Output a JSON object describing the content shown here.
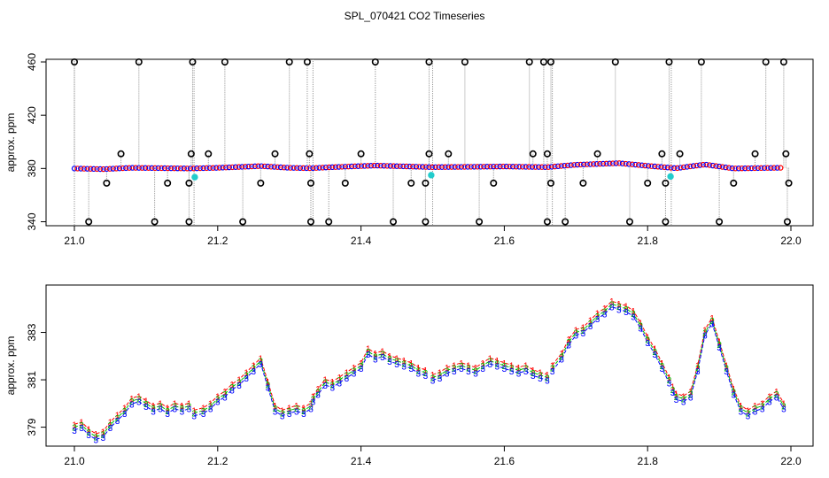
{
  "title": "SPL_070421  CO2 Timeseries",
  "colors": {
    "series1": "#ff0000",
    "series2": "#00bb00",
    "series3": "#0000ff",
    "outlier_marker": "#000000",
    "flagged": "#22cccc",
    "connector": "#999999"
  },
  "chart_data": [
    {
      "type": "scatter",
      "ylabel": "approx. ppm",
      "xlim": [
        21.0,
        22.0
      ],
      "ylim": [
        337,
        462
      ],
      "x_ticks": [
        "21.0",
        "21.2",
        "21.4",
        "21.6",
        "21.8",
        "22.0"
      ],
      "x_tick_values": [
        21.0,
        21.2,
        21.4,
        21.6,
        21.8,
        22.0
      ],
      "y_ticks": [
        "340",
        "380",
        "420",
        "460"
      ],
      "y_tick_values": [
        340,
        380,
        420,
        460
      ],
      "baseline_trend": [
        [
          21.0,
          380.0
        ],
        [
          21.04,
          379.5
        ],
        [
          21.08,
          380.5
        ],
        [
          21.16,
          380.0
        ],
        [
          21.2,
          380.5
        ],
        [
          21.26,
          381.8
        ],
        [
          21.3,
          380.5
        ],
        [
          21.33,
          380.2
        ],
        [
          21.36,
          381.0
        ],
        [
          21.42,
          382.2
        ],
        [
          21.5,
          381.0
        ],
        [
          21.6,
          381.5
        ],
        [
          21.66,
          381.0
        ],
        [
          21.7,
          382.8
        ],
        [
          21.76,
          384.0
        ],
        [
          21.8,
          382.0
        ],
        [
          21.84,
          380.2
        ],
        [
          21.88,
          383.0
        ],
        [
          21.92,
          380.0
        ],
        [
          21.98,
          380.5
        ]
      ],
      "break_points": [
        21.167,
        21.333,
        21.5,
        21.667,
        21.833
      ],
      "outliers_high": [
        21.0,
        21.09,
        21.165,
        21.21,
        21.3,
        21.325,
        21.42,
        21.495,
        21.545,
        21.635,
        21.655,
        21.665,
        21.755,
        21.83,
        21.875,
        21.965,
        21.99
      ],
      "outliers_low": [
        21.02,
        21.112,
        21.16,
        21.235,
        21.33,
        21.355,
        21.445,
        21.49,
        21.565,
        21.66,
        21.685,
        21.775,
        21.825,
        21.9,
        21.995
      ],
      "outliers_mid_high": [
        21.065,
        21.163,
        21.187,
        21.28,
        21.328,
        21.4,
        21.495,
        21.522,
        21.64,
        21.66,
        21.73,
        21.82,
        21.845,
        21.95,
        21.993
      ],
      "outliers_mid_low": [
        21.045,
        21.13,
        21.16,
        21.26,
        21.33,
        21.378,
        21.47,
        21.49,
        21.585,
        21.665,
        21.71,
        21.8,
        21.825,
        21.92,
        21.997
      ],
      "flagged_points": [
        [
          21.168,
          373.5
        ],
        [
          21.498,
          375.0
        ],
        [
          21.832,
          374.0
        ]
      ]
    },
    {
      "type": "line",
      "ylabel": "approx. ppm",
      "xlim": [
        21.0,
        22.0
      ],
      "ylim": [
        378.2,
        385.0
      ],
      "x_ticks": [
        "21.0",
        "21.2",
        "21.4",
        "21.6",
        "21.8",
        "22.0"
      ],
      "x_tick_values": [
        21.0,
        21.2,
        21.4,
        21.6,
        21.8,
        22.0
      ],
      "y_ticks": [
        "379",
        "381",
        "383"
      ],
      "y_tick_values": [
        379,
        381,
        383
      ],
      "series": [
        {
          "marker": "1",
          "color": "#ff0000"
        },
        {
          "marker": "2",
          "color": "#00bb00"
        },
        {
          "marker": "3",
          "color": "#0000ff"
        }
      ],
      "segments": [
        [
          [
            21.0,
            379.0
          ],
          [
            21.01,
            379.1
          ],
          [
            21.02,
            378.8
          ],
          [
            21.03,
            378.6
          ],
          [
            21.04,
            378.7
          ],
          [
            21.05,
            379.1
          ],
          [
            21.06,
            379.4
          ],
          [
            21.07,
            379.7
          ],
          [
            21.08,
            380.1
          ],
          [
            21.09,
            380.2
          ],
          [
            21.1,
            380.0
          ],
          [
            21.11,
            379.8
          ],
          [
            21.12,
            379.9
          ],
          [
            21.13,
            379.7
          ],
          [
            21.14,
            379.9
          ],
          [
            21.15,
            379.8
          ],
          [
            21.16,
            379.9
          ]
        ],
        [
          [
            21.167,
            379.6
          ],
          [
            21.18,
            379.7
          ],
          [
            21.19,
            379.9
          ],
          [
            21.2,
            380.2
          ],
          [
            21.21,
            380.4
          ],
          [
            21.22,
            380.7
          ],
          [
            21.23,
            380.9
          ],
          [
            21.24,
            381.2
          ],
          [
            21.25,
            381.5
          ],
          [
            21.26,
            381.8
          ],
          [
            21.27,
            380.8
          ],
          [
            21.28,
            379.8
          ],
          [
            21.29,
            379.6
          ],
          [
            21.3,
            379.7
          ],
          [
            21.31,
            379.8
          ],
          [
            21.32,
            379.7
          ],
          [
            21.33,
            379.9
          ]
        ],
        [
          [
            21.333,
            380.2
          ],
          [
            21.34,
            380.5
          ],
          [
            21.35,
            380.9
          ],
          [
            21.36,
            380.8
          ],
          [
            21.37,
            381.0
          ],
          [
            21.38,
            381.2
          ],
          [
            21.39,
            381.4
          ],
          [
            21.4,
            381.6
          ],
          [
            21.41,
            382.2
          ],
          [
            21.42,
            382.0
          ],
          [
            21.43,
            382.1
          ],
          [
            21.44,
            381.9
          ],
          [
            21.45,
            381.8
          ],
          [
            21.46,
            381.7
          ],
          [
            21.47,
            381.6
          ],
          [
            21.48,
            381.4
          ],
          [
            21.49,
            381.3
          ]
        ],
        [
          [
            21.5,
            381.1
          ],
          [
            21.51,
            381.2
          ],
          [
            21.52,
            381.4
          ],
          [
            21.53,
            381.5
          ],
          [
            21.54,
            381.6
          ],
          [
            21.55,
            381.5
          ],
          [
            21.56,
            381.4
          ],
          [
            21.57,
            381.6
          ],
          [
            21.58,
            381.8
          ],
          [
            21.59,
            381.7
          ],
          [
            21.6,
            381.6
          ],
          [
            21.61,
            381.5
          ],
          [
            21.62,
            381.4
          ],
          [
            21.63,
            381.5
          ],
          [
            21.64,
            381.3
          ],
          [
            21.65,
            381.2
          ],
          [
            21.66,
            381.1
          ]
        ],
        [
          [
            21.667,
            381.5
          ],
          [
            21.68,
            382.0
          ],
          [
            21.69,
            382.6
          ],
          [
            21.7,
            383.0
          ],
          [
            21.71,
            383.1
          ],
          [
            21.72,
            383.4
          ],
          [
            21.73,
            383.7
          ],
          [
            21.74,
            383.9
          ],
          [
            21.75,
            384.2
          ],
          [
            21.76,
            384.1
          ],
          [
            21.77,
            384.0
          ],
          [
            21.78,
            383.8
          ],
          [
            21.79,
            383.3
          ],
          [
            21.8,
            382.7
          ],
          [
            21.81,
            382.2
          ],
          [
            21.82,
            381.6
          ],
          [
            21.83,
            381.0
          ]
        ],
        [
          [
            21.835,
            380.6
          ],
          [
            21.84,
            380.3
          ],
          [
            21.85,
            380.2
          ],
          [
            21.86,
            380.4
          ],
          [
            21.87,
            381.5
          ],
          [
            21.88,
            383.0
          ],
          [
            21.89,
            383.5
          ],
          [
            21.9,
            382.5
          ],
          [
            21.91,
            381.5
          ],
          [
            21.92,
            380.5
          ],
          [
            21.93,
            379.8
          ],
          [
            21.94,
            379.6
          ],
          [
            21.95,
            379.8
          ],
          [
            21.96,
            379.9
          ],
          [
            21.97,
            380.2
          ],
          [
            21.98,
            380.4
          ],
          [
            21.99,
            379.9
          ]
        ]
      ]
    }
  ]
}
